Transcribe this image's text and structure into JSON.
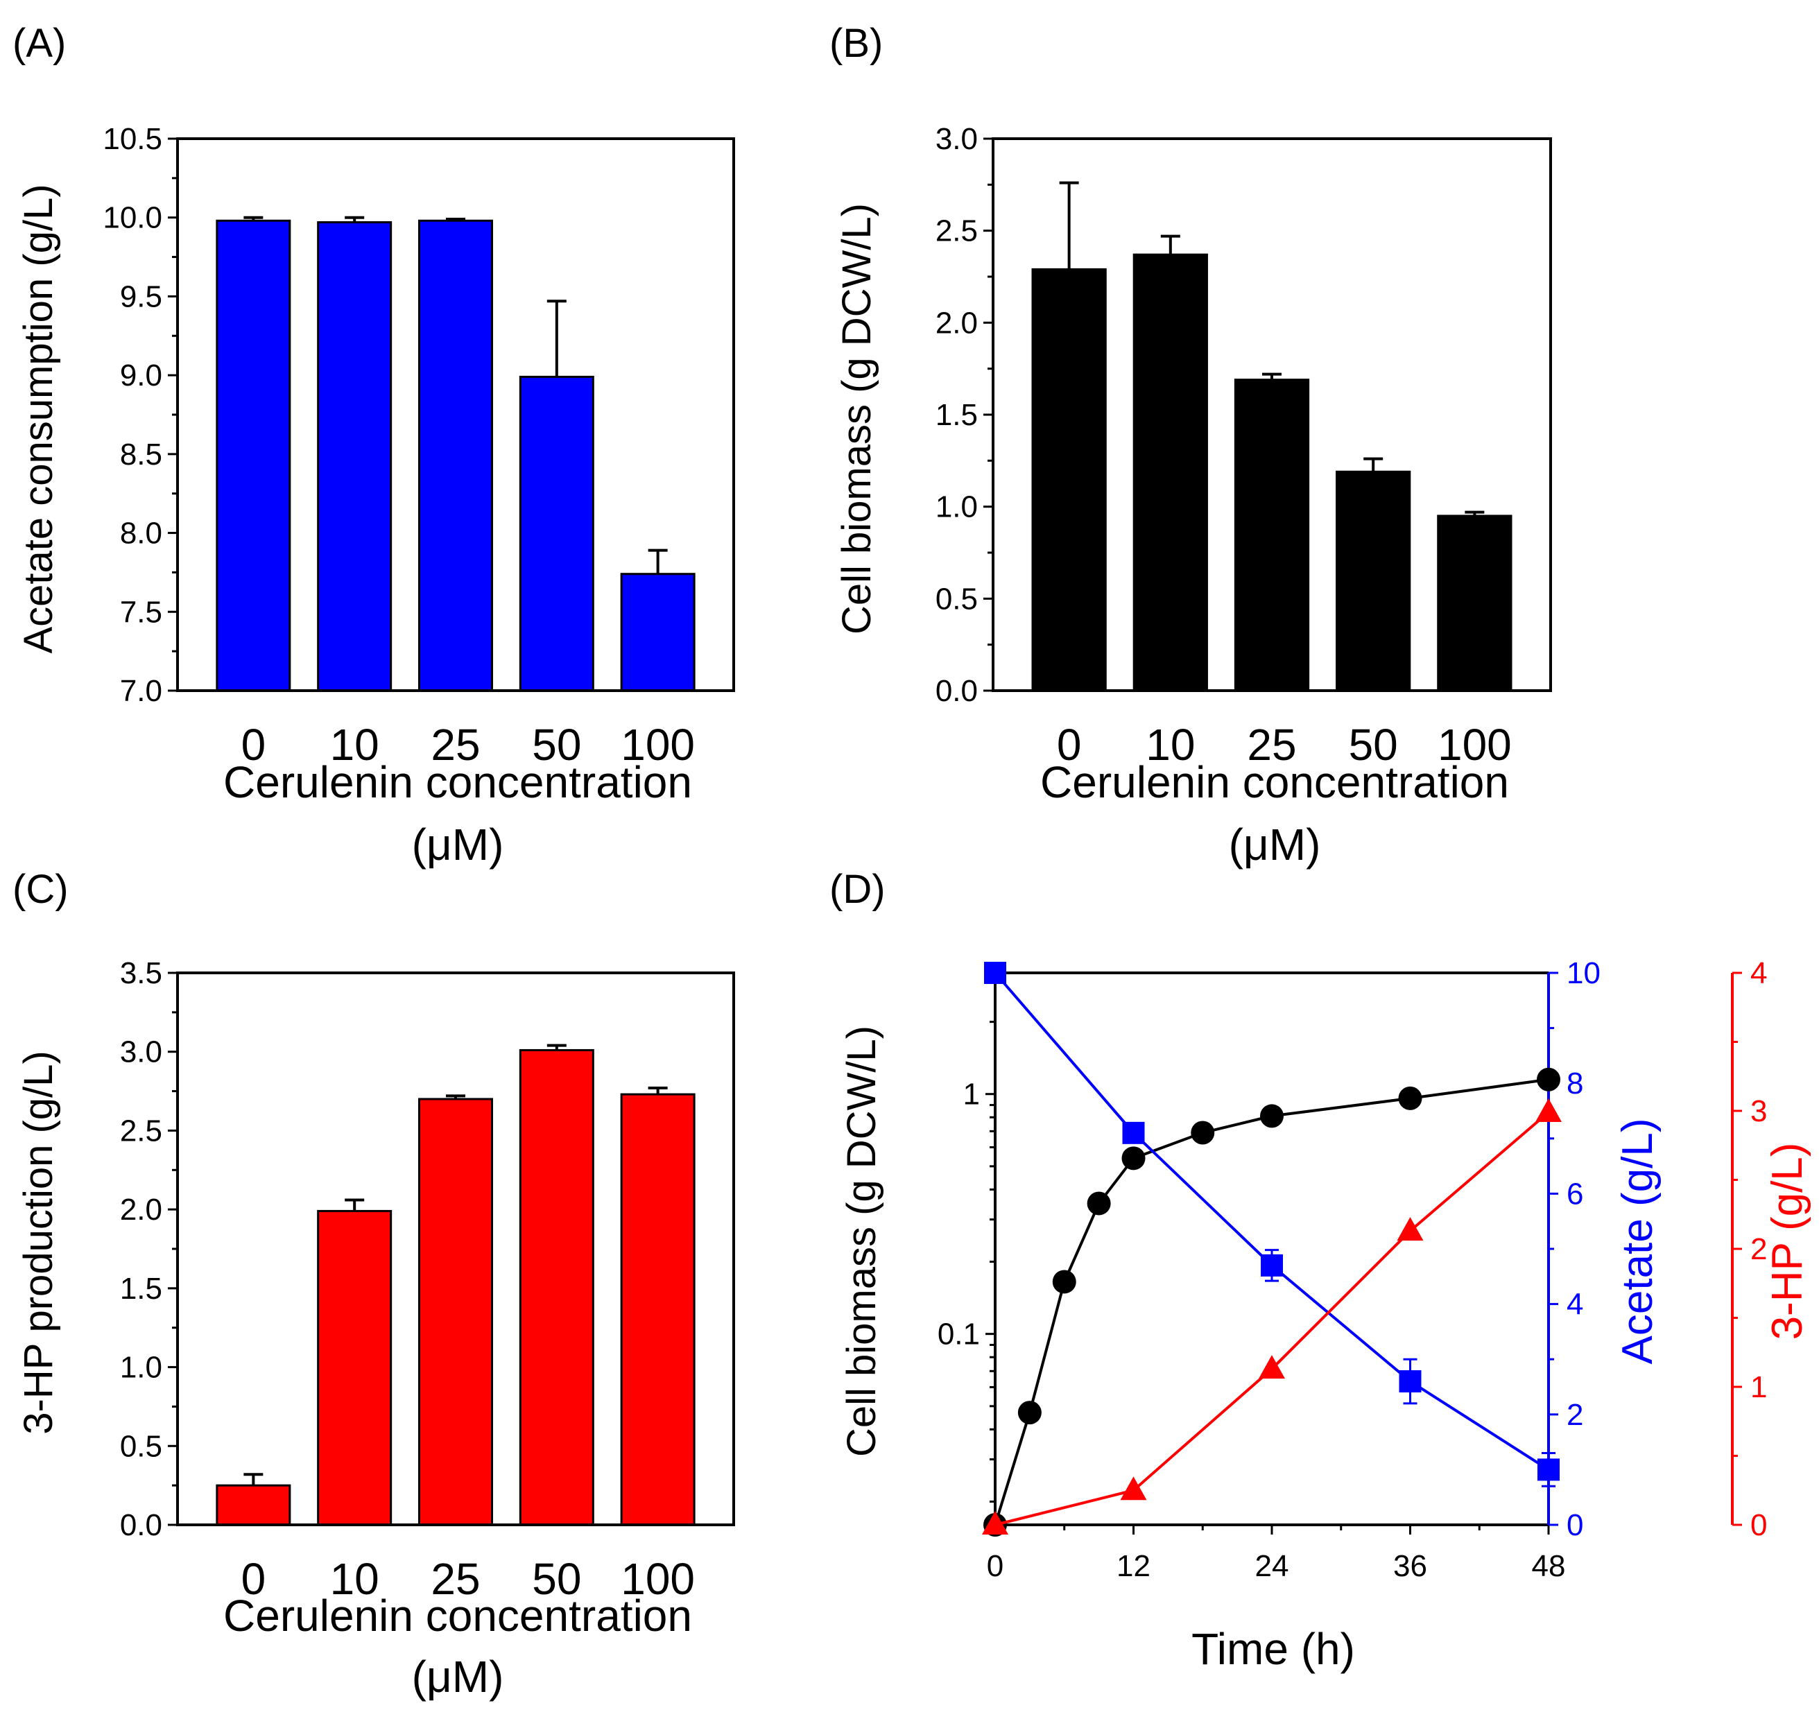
{
  "panel_labels": [
    "(A)",
    "(B)",
    "(C)",
    "(D)"
  ],
  "colors": {
    "blue": "#0000ff",
    "black": "#000000",
    "red": "#ff0000"
  },
  "chart_data": [
    {
      "panel": "(A)",
      "type": "bar",
      "color": "#0000ff",
      "categories": [
        "0",
        "10",
        "25",
        "50",
        "100"
      ],
      "values": [
        9.98,
        9.97,
        9.98,
        8.99,
        7.74
      ],
      "errors": [
        0.02,
        0.03,
        0.01,
        0.48,
        0.15
      ],
      "ylim": [
        7.0,
        10.5
      ],
      "yticks": [
        "7.0",
        "7.5",
        "8.0",
        "8.5",
        "9.0",
        "9.5",
        "10.0",
        "10.5"
      ],
      "ylabel": "Acetate consumption (g/L)",
      "xlabel_line1": "Cerulenin concentration",
      "xlabel_line2": "(μM)"
    },
    {
      "panel": "(B)",
      "type": "bar",
      "color": "#000000",
      "categories": [
        "0",
        "10",
        "25",
        "50",
        "100"
      ],
      "values": [
        2.29,
        2.37,
        1.69,
        1.19,
        0.95
      ],
      "errors": [
        0.47,
        0.1,
        0.03,
        0.07,
        0.02
      ],
      "ylim": [
        0.0,
        3.0
      ],
      "yticks": [
        "0.0",
        "0.5",
        "1.0",
        "1.5",
        "2.0",
        "2.5",
        "3.0"
      ],
      "ylabel": "Cell biomass (g DCW/L)",
      "xlabel_line1": "Cerulenin concentration",
      "xlabel_line2": "(μM)"
    },
    {
      "panel": "(C)",
      "type": "bar",
      "color": "#ff0000",
      "categories": [
        "0",
        "10",
        "25",
        "50",
        "100"
      ],
      "values": [
        0.25,
        1.99,
        2.7,
        3.01,
        2.73
      ],
      "errors": [
        0.07,
        0.07,
        0.02,
        0.03,
        0.04
      ],
      "ylim": [
        0.0,
        3.5
      ],
      "yticks": [
        "0.0",
        "0.5",
        "1.0",
        "1.5",
        "2.0",
        "2.5",
        "3.0",
        "3.5"
      ],
      "ylabel": "3-HP production (g/L)",
      "xlabel_line1": "Cerulenin concentration",
      "xlabel_line2": "(μM)"
    },
    {
      "panel": "(D)",
      "type": "line",
      "xlabel": "Time (h)",
      "xlim": [
        0,
        48
      ],
      "xticks": [
        "0",
        "12",
        "24",
        "36",
        "48"
      ],
      "left_axis": {
        "label": "Cell biomass (g DCW/L)",
        "scale": "log",
        "ylim": [
          0.016,
          3.2
        ],
        "ticks": [
          {
            "value": 0.1,
            "label": "0.1"
          },
          {
            "value": 1,
            "label": "1"
          }
        ]
      },
      "right_axis_1": {
        "label": "Acetate (g/L)",
        "color": "#0000ff",
        "ylim": [
          0,
          10
        ],
        "ticks": [
          "0",
          "2",
          "4",
          "6",
          "8",
          "10"
        ]
      },
      "right_axis_2": {
        "label": "3-HP (g/L)",
        "color": "#ff0000",
        "ylim": [
          0,
          4
        ],
        "ticks": [
          "0",
          "1",
          "2",
          "3",
          "4"
        ]
      },
      "series": [
        {
          "name": "Cell biomass",
          "axis": "left",
          "marker": "circle",
          "color": "#000000",
          "x": [
            0,
            3,
            6,
            9,
            12,
            18,
            24,
            36,
            48
          ],
          "y": [
            0.016,
            0.047,
            0.165,
            0.35,
            0.54,
            0.69,
            0.81,
            0.96,
            1.15
          ]
        },
        {
          "name": "Acetate",
          "axis": "right_1",
          "marker": "square",
          "color": "#0000ff",
          "x": [
            0,
            12,
            24,
            36,
            48
          ],
          "y": [
            10.0,
            7.1,
            4.7,
            2.6,
            1.0
          ],
          "errors": [
            0,
            0.1,
            0.28,
            0.4,
            0.3
          ]
        },
        {
          "name": "3-HP",
          "axis": "right_2",
          "marker": "triangle",
          "color": "#ff0000",
          "x": [
            0,
            12,
            24,
            36,
            48
          ],
          "y": [
            0.0,
            0.25,
            1.13,
            2.13,
            2.99
          ]
        }
      ]
    }
  ]
}
